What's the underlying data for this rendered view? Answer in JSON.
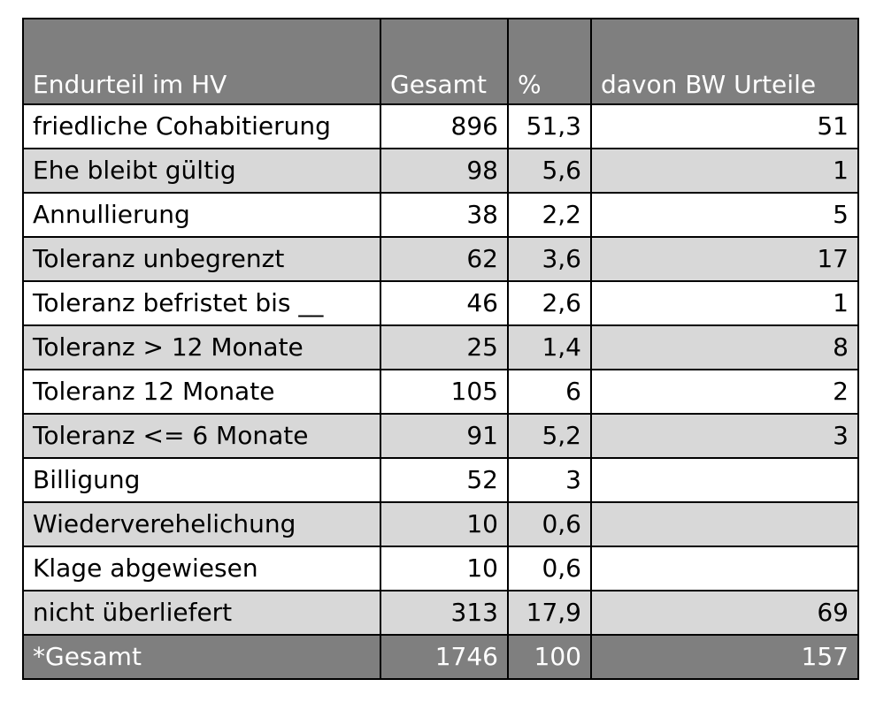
{
  "table": {
    "headers": {
      "col1": "Endurteil im HV",
      "col2": "Gesamt",
      "col3": "%",
      "col4": "davon BW Urteile"
    },
    "rows": [
      {
        "label": "friedliche Cohabitierung",
        "gesamt": "896",
        "pct": "51,3",
        "bw": "51"
      },
      {
        "label": "Ehe bleibt gültig",
        "gesamt": "98",
        "pct": "5,6",
        "bw": "1"
      },
      {
        "label": "Annullierung",
        "gesamt": "38",
        "pct": "2,2",
        "bw": "5"
      },
      {
        "label": "Toleranz unbegrenzt",
        "gesamt": "62",
        "pct": "3,6",
        "bw": "17"
      },
      {
        "label": "Toleranz befristet bis __",
        "gesamt": "46",
        "pct": "2,6",
        "bw": "1"
      },
      {
        "label": "Toleranz > 12 Monate",
        "gesamt": "25",
        "pct": "1,4",
        "bw": "8"
      },
      {
        "label": "Toleranz 12 Monate",
        "gesamt": "105",
        "pct": "6",
        "bw": "2"
      },
      {
        "label": "Toleranz <= 6 Monate",
        "gesamt": "91",
        "pct": "5,2",
        "bw": "3"
      },
      {
        "label": "Billigung",
        "gesamt": "52",
        "pct": "3",
        "bw": ""
      },
      {
        "label": "Wiederverehelichung",
        "gesamt": "10",
        "pct": "0,6",
        "bw": ""
      },
      {
        "label": "Klage abgewiesen",
        "gesamt": "10",
        "pct": "0,6",
        "bw": ""
      },
      {
        "label": "nicht überliefert",
        "gesamt": "313",
        "pct": "17,9",
        "bw": "69"
      }
    ],
    "total": {
      "label": "*Gesamt",
      "gesamt": "1746",
      "pct": "100",
      "bw": "157"
    }
  }
}
